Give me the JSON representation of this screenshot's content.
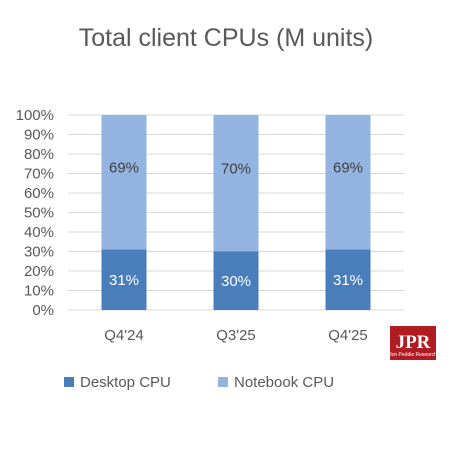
{
  "chart_data": {
    "type": "bar",
    "stacked": true,
    "title": "Total client CPUs (M units)",
    "categories": [
      "Q4'24",
      "Q3'25",
      "Q4'25"
    ],
    "series": [
      {
        "name": "Desktop CPU",
        "values": [
          31,
          30,
          31
        ],
        "labels": [
          "31%",
          "30%",
          "31%"
        ],
        "color": "#4a7ebb",
        "label_color": "#ffffff"
      },
      {
        "name": "Notebook CPU",
        "values": [
          69,
          70,
          69
        ],
        "labels": [
          "69%",
          "70%",
          "69%"
        ],
        "color": "#93b3e0",
        "label_color": "#404040"
      }
    ],
    "yticks": [
      "100%",
      "90%",
      "80%",
      "70%",
      "60%",
      "50%",
      "40%",
      "30%",
      "20%",
      "10%",
      "0%"
    ],
    "ylim": [
      0,
      100
    ],
    "grid": true,
    "legend_position": "bottom-left"
  },
  "logo": {
    "text": "JPR",
    "subtext": "Jon Peddie Research",
    "color": "#b01c22"
  }
}
